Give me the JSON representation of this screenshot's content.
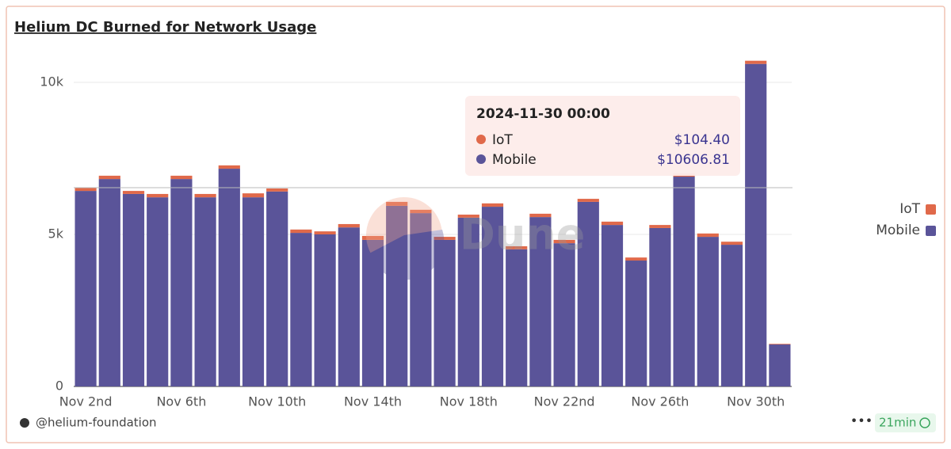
{
  "chart_data": {
    "type": "stacked-bar",
    "title": "Helium DC Burned for Network Usage",
    "categories": [
      "Nov 2nd",
      null,
      null,
      null,
      "Nov 6th",
      null,
      null,
      null,
      "Nov 10th",
      null,
      null,
      null,
      "Nov 14th",
      null,
      null,
      null,
      "Nov 18th",
      null,
      null,
      null,
      "Nov 22nd",
      null,
      null,
      null,
      "Nov 26th",
      null,
      null,
      null,
      "Nov 30th",
      null
    ],
    "series": [
      {
        "name": "IoT",
        "color": "#e0694a",
        "values": [
          110,
          110,
          100,
          110,
          110,
          110,
          110,
          130,
          100,
          110,
          100,
          110,
          130,
          130,
          110,
          100,
          100,
          110,
          100,
          110,
          110,
          100,
          110,
          100,
          100,
          100,
          110,
          100,
          104.4,
          20
        ]
      },
      {
        "name": "Mobile",
        "color": "#5a5499",
        "values": [
          6430,
          6820,
          6330,
          6220,
          6820,
          6220,
          7160,
          6220,
          6410,
          5050,
          5000,
          5230,
          4820,
          5940,
          5700,
          4820,
          5550,
          5910,
          4510,
          5570,
          4710,
          6070,
          5310,
          4140,
          5210,
          6900,
          4920,
          4660,
          10606.81,
          1380
        ]
      }
    ],
    "ylim": [
      0,
      11000
    ],
    "yticks": [
      0,
      {
        "value": 5000,
        "label": "5k"
      },
      {
        "value": 10000,
        "label": "10k"
      }
    ],
    "grid": true,
    "legend": "right",
    "tooltip": {
      "date": "2024-11-30 00:00",
      "labels": [
        "$104.40",
        "$10606.81"
      ]
    },
    "footer": {
      "author": "@helium-foundation",
      "age": "21min"
    }
  }
}
